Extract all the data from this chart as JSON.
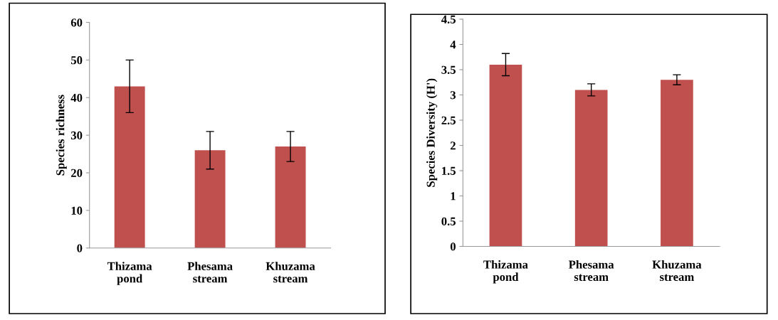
{
  "chart_data": [
    {
      "type": "bar",
      "ylabel": "Species richness",
      "categories": [
        "Thizama\npond",
        "Phesama\nstream",
        "Khuzama\nstream"
      ],
      "values": [
        43,
        26,
        27
      ],
      "errors": [
        7,
        5,
        4
      ],
      "color": "#c0504d",
      "ylim": [
        0,
        60
      ],
      "yticks": [
        0,
        10,
        20,
        30,
        40,
        50,
        60
      ],
      "grid": false,
      "legend": false
    },
    {
      "type": "bar",
      "ylabel": "Species Diversity (H')",
      "categories": [
        "Thizama\npond",
        "Phesama\nstream",
        "Khuzama\nstream"
      ],
      "values": [
        3.6,
        3.1,
        3.3
      ],
      "errors": [
        0.22,
        0.12,
        0.1
      ],
      "color": "#c0504d",
      "ylim": [
        0,
        4.5
      ],
      "yticks": [
        0,
        0.5,
        1,
        1.5,
        2,
        2.5,
        3,
        3.5,
        4,
        4.5
      ],
      "grid": false,
      "legend": false
    }
  ]
}
